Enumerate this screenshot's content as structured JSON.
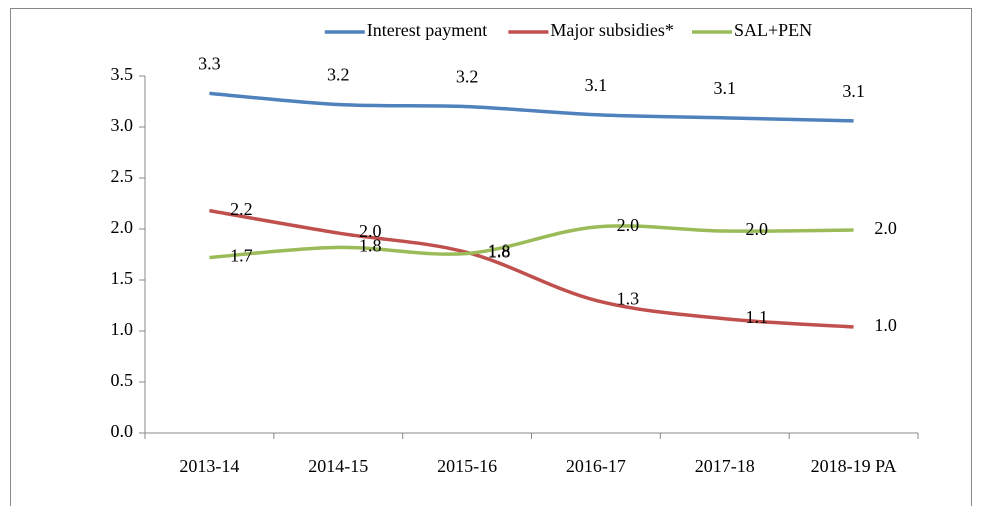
{
  "chart_data": {
    "type": "line",
    "categories": [
      "2013-14",
      "2014-15",
      "2015-16",
      "2016-17",
      "2017-18",
      "2018-19 PA"
    ],
    "series": [
      {
        "name": "Interest payment",
        "color": "#4f81bd",
        "values": [
          3.33,
          3.22,
          3.2,
          3.12,
          3.09,
          3.06
        ],
        "value_labels": [
          "3.3",
          "3.2",
          "3.2",
          "3.1",
          "3.1",
          "3.1"
        ]
      },
      {
        "name": "Major subsidies*",
        "color": "#c0504d",
        "values": [
          2.18,
          1.96,
          1.77,
          1.3,
          1.12,
          1.04
        ],
        "value_labels": [
          "2.2",
          "2.0",
          "1.8",
          "1.3",
          "1.1",
          "1.0"
        ]
      },
      {
        "name": "SAL+PEN",
        "color": "#9bbb59",
        "values": [
          1.72,
          1.82,
          1.76,
          2.02,
          1.98,
          1.99
        ],
        "value_labels": [
          "1.7",
          "1.8",
          "1.8",
          "2.0",
          "2.0",
          "2.0"
        ]
      }
    ],
    "ylim": [
      0,
      3.5
    ],
    "yticks": [
      {
        "value": 0,
        "label": "0.0"
      },
      0.5,
      {
        "value": 1,
        "label": "1.0"
      },
      1.5,
      {
        "value": 2,
        "label": "2.0"
      },
      2.5,
      {
        "value": 3,
        "label": "3.0"
      },
      3.5
    ],
    "legend": "top"
  }
}
